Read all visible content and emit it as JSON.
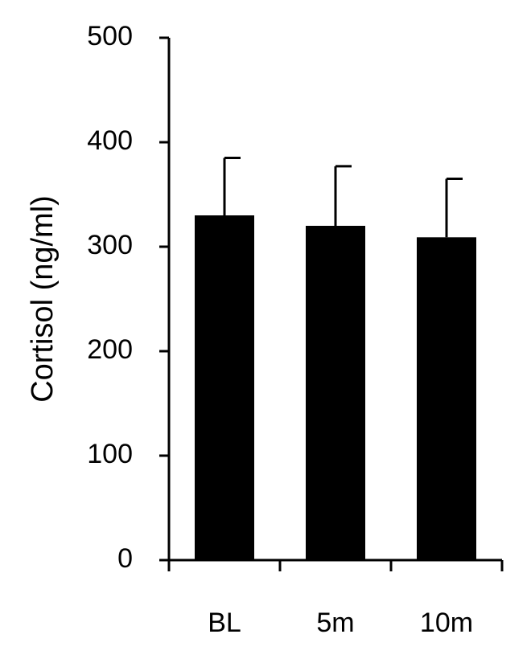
{
  "chart_data": {
    "type": "bar",
    "y_label": "Cortisol (ng/ml)",
    "categories": [
      "BL",
      "5m",
      "10m"
    ],
    "values": [
      330,
      320,
      309
    ],
    "errors": [
      55,
      57,
      56
    ],
    "color": "#000000",
    "ylim": [
      0,
      500
    ],
    "yticks": [
      0,
      100,
      200,
      300,
      400,
      500
    ]
  }
}
